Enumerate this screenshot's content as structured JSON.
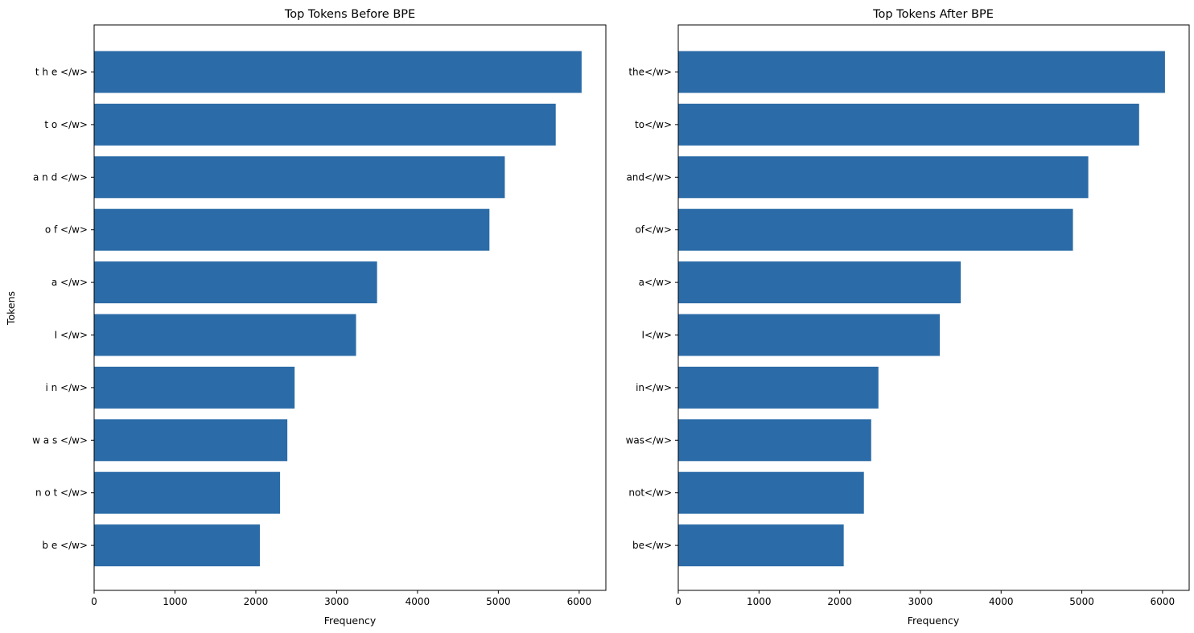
{
  "chart_data": [
    {
      "type": "bar",
      "orientation": "horizontal",
      "title": "Top Tokens Before BPE",
      "xlabel": "Frequency",
      "ylabel": "Tokens",
      "categories": [
        "t h e </w>",
        "t o </w>",
        "a n d </w>",
        "o f </w>",
        "a </w>",
        "I </w>",
        "i n </w>",
        "w a s </w>",
        "n o t </w>",
        "b e </w>"
      ],
      "values": [
        6030,
        5710,
        5080,
        4890,
        3500,
        3240,
        2480,
        2390,
        2300,
        2050
      ],
      "xlim": [
        0,
        6330
      ],
      "xticks": [
        0,
        1000,
        2000,
        3000,
        4000,
        5000,
        6000
      ],
      "bar_color": "#2b6ba7",
      "grid": false
    },
    {
      "type": "bar",
      "orientation": "horizontal",
      "title": "Top Tokens After BPE",
      "xlabel": "Frequency",
      "ylabel": "",
      "categories": [
        "the</w>",
        "to</w>",
        "and</w>",
        "of</w>",
        "a</w>",
        "I</w>",
        "in</w>",
        "was</w>",
        "not</w>",
        "be</w>"
      ],
      "values": [
        6030,
        5710,
        5080,
        4890,
        3500,
        3240,
        2480,
        2390,
        2300,
        2050
      ],
      "xlim": [
        0,
        6330
      ],
      "xticks": [
        0,
        1000,
        2000,
        3000,
        4000,
        5000,
        6000
      ],
      "bar_color": "#2b6ba7",
      "grid": false
    }
  ]
}
